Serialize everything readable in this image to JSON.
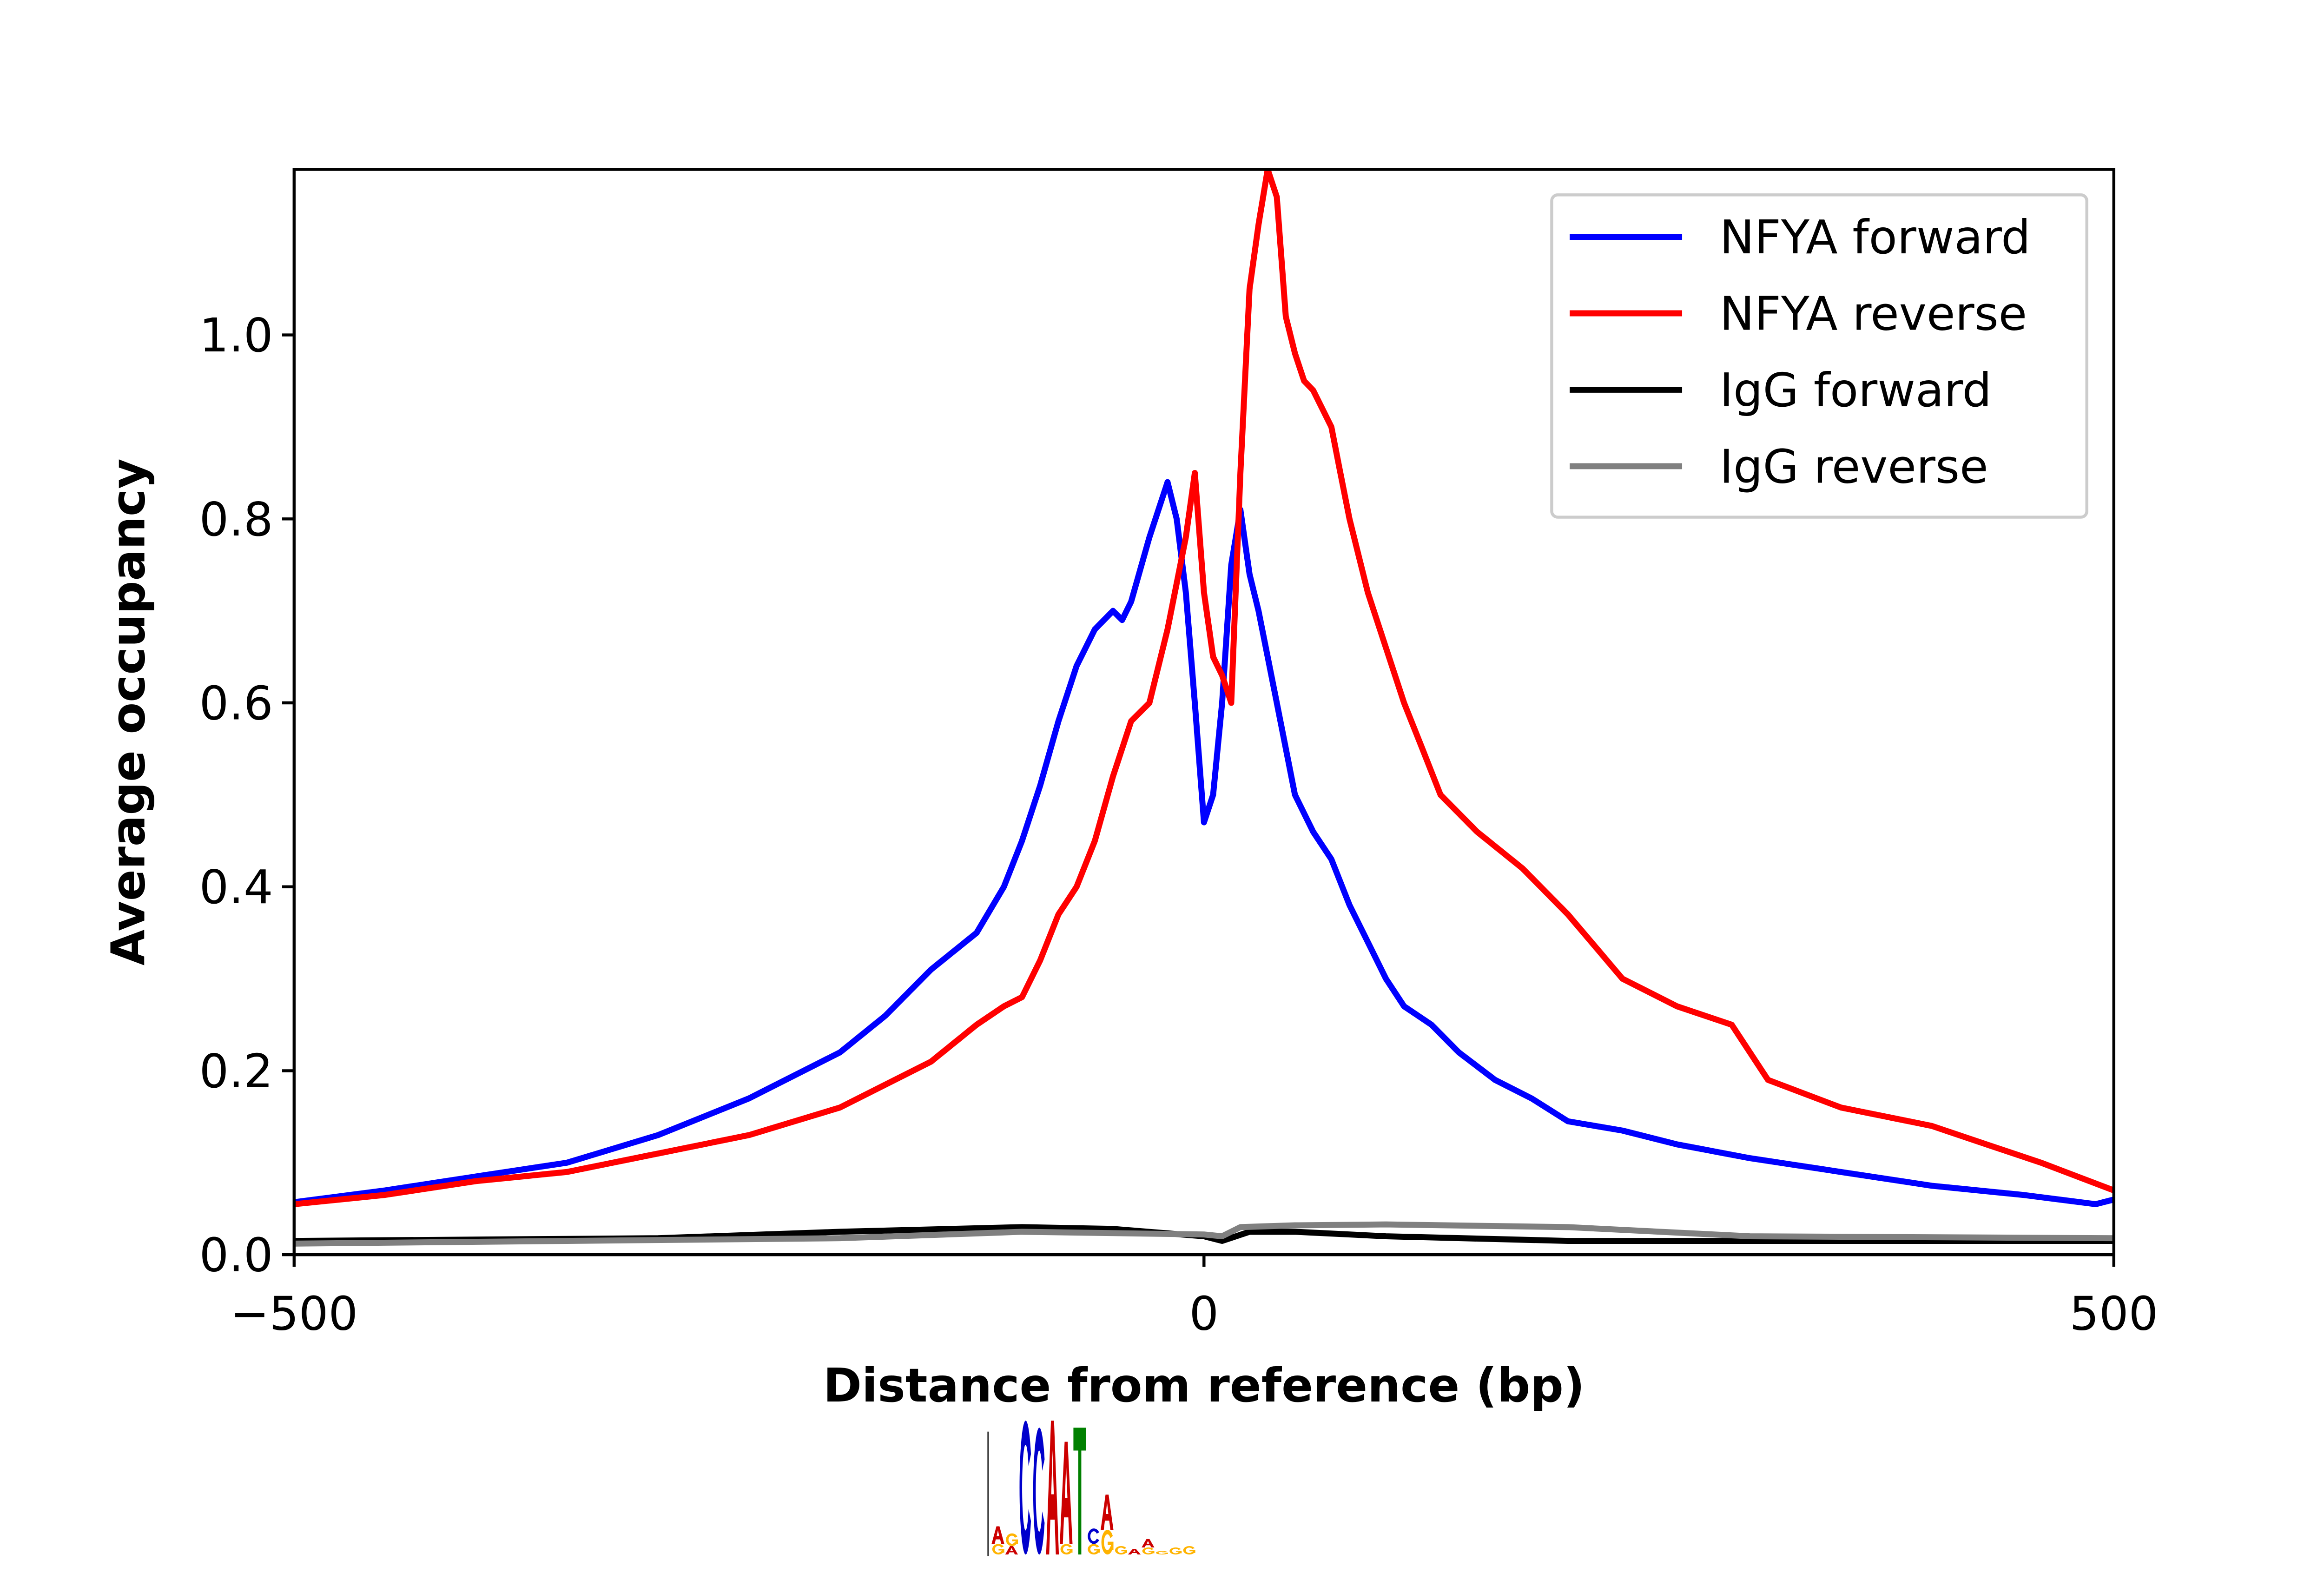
{
  "chart_data": {
    "type": "line",
    "title": "",
    "xlabel": "Distance from reference (bp)",
    "ylabel": "Average occupancy",
    "xlim": [
      -500,
      500
    ],
    "ylim": [
      0,
      1.18
    ],
    "xticks": [
      -500,
      0,
      500
    ],
    "xtick_labels": [
      "−500",
      "0",
      "500"
    ],
    "yticks": [
      0.0,
      0.2,
      0.4,
      0.6,
      0.8,
      1.0
    ],
    "ytick_labels": [
      "0.0",
      "0.2",
      "0.4",
      "0.6",
      "0.8",
      "1.0"
    ],
    "grid": false,
    "legend_position": "top-right",
    "series": [
      {
        "name": "NFYA forward",
        "color": "#0000ff",
        "x": [
          -500,
          -450,
          -400,
          -350,
          -300,
          -250,
          -200,
          -175,
          -150,
          -125,
          -110,
          -100,
          -90,
          -80,
          -70,
          -60,
          -50,
          -45,
          -40,
          -30,
          -20,
          -15,
          -10,
          -5,
          0,
          5,
          10,
          15,
          20,
          25,
          30,
          40,
          50,
          60,
          70,
          80,
          90,
          100,
          110,
          125,
          140,
          160,
          180,
          200,
          230,
          260,
          300,
          350,
          400,
          450,
          490,
          500
        ],
        "y": [
          0.057,
          0.07,
          0.085,
          0.1,
          0.13,
          0.17,
          0.22,
          0.26,
          0.31,
          0.35,
          0.4,
          0.45,
          0.51,
          0.58,
          0.64,
          0.68,
          0.7,
          0.69,
          0.71,
          0.78,
          0.84,
          0.8,
          0.72,
          0.6,
          0.47,
          0.5,
          0.6,
          0.75,
          0.81,
          0.74,
          0.7,
          0.6,
          0.5,
          0.46,
          0.43,
          0.38,
          0.34,
          0.3,
          0.27,
          0.25,
          0.22,
          0.19,
          0.17,
          0.145,
          0.135,
          0.12,
          0.105,
          0.09,
          0.075,
          0.065,
          0.055,
          0.06
        ]
      },
      {
        "name": "NFYA reverse",
        "color": "#ff0000",
        "x": [
          -500,
          -450,
          -400,
          -350,
          -300,
          -250,
          -200,
          -150,
          -125,
          -110,
          -100,
          -90,
          -80,
          -70,
          -60,
          -50,
          -40,
          -30,
          -20,
          -10,
          -5,
          0,
          5,
          10,
          15,
          20,
          25,
          30,
          35,
          40,
          45,
          50,
          55,
          60,
          70,
          75,
          80,
          90,
          100,
          110,
          120,
          130,
          150,
          175,
          200,
          230,
          260,
          290,
          310,
          350,
          400,
          430,
          460,
          500
        ],
        "y": [
          0.055,
          0.065,
          0.08,
          0.09,
          0.11,
          0.13,
          0.16,
          0.21,
          0.25,
          0.27,
          0.28,
          0.32,
          0.37,
          0.4,
          0.45,
          0.52,
          0.58,
          0.6,
          0.68,
          0.78,
          0.85,
          0.72,
          0.65,
          0.63,
          0.6,
          0.85,
          1.05,
          1.12,
          1.18,
          1.15,
          1.02,
          0.98,
          0.95,
          0.94,
          0.9,
          0.85,
          0.8,
          0.72,
          0.66,
          0.6,
          0.55,
          0.5,
          0.46,
          0.42,
          0.37,
          0.3,
          0.27,
          0.25,
          0.19,
          0.16,
          0.14,
          0.12,
          0.1,
          0.07
        ]
      },
      {
        "name": "IgG forward",
        "color": "#000000",
        "x": [
          -500,
          -300,
          -200,
          -100,
          -50,
          0,
          10,
          25,
          50,
          100,
          200,
          500
        ],
        "y": [
          0.015,
          0.018,
          0.025,
          0.03,
          0.028,
          0.02,
          0.015,
          0.025,
          0.025,
          0.02,
          0.015,
          0.015
        ]
      },
      {
        "name": "IgG reverse",
        "color": "#808080",
        "x": [
          -500,
          -200,
          -100,
          0,
          10,
          20,
          50,
          100,
          200,
          300,
          500
        ],
        "y": [
          0.012,
          0.018,
          0.025,
          0.022,
          0.02,
          0.03,
          0.032,
          0.033,
          0.03,
          0.02,
          0.018
        ]
      }
    ]
  },
  "motif_logo": {
    "sequence": "CCAAT",
    "columns": [
      [
        {
          "l": "G",
          "b": 0.15
        },
        {
          "l": "A",
          "b": 0.25
        }
      ],
      [
        {
          "l": "A",
          "b": 0.12
        },
        {
          "l": "G",
          "b": 0.18
        }
      ],
      [
        {
          "l": "C",
          "b": 1.9
        }
      ],
      [
        {
          "l": "C",
          "b": 1.8
        }
      ],
      [
        {
          "l": "A",
          "b": 1.9
        }
      ],
      [
        {
          "l": "G",
          "b": 0.15
        },
        {
          "l": "A",
          "b": 1.45
        }
      ],
      [
        {
          "l": "T",
          "b": 1.8
        }
      ],
      [
        {
          "l": "G",
          "b": 0.15
        },
        {
          "l": "C",
          "b": 0.22
        }
      ],
      [
        {
          "l": "G",
          "b": 0.35
        },
        {
          "l": "A",
          "b": 0.5
        }
      ],
      [
        {
          "l": "G",
          "b": 0.12
        }
      ],
      [
        {
          "l": "A",
          "b": 0.08
        }
      ],
      [
        {
          "l": "G",
          "b": 0.1
        },
        {
          "l": "A",
          "b": 0.12
        }
      ],
      [
        {
          "l": "G",
          "b": 0.05
        }
      ],
      [
        {
          "l": "G",
          "b": 0.1
        }
      ],
      [
        {
          "l": "G",
          "b": 0.12
        }
      ]
    ],
    "colors": {
      "A": "#cc0000",
      "C": "#0000cc",
      "G": "#ffb300",
      "T": "#008000"
    }
  }
}
